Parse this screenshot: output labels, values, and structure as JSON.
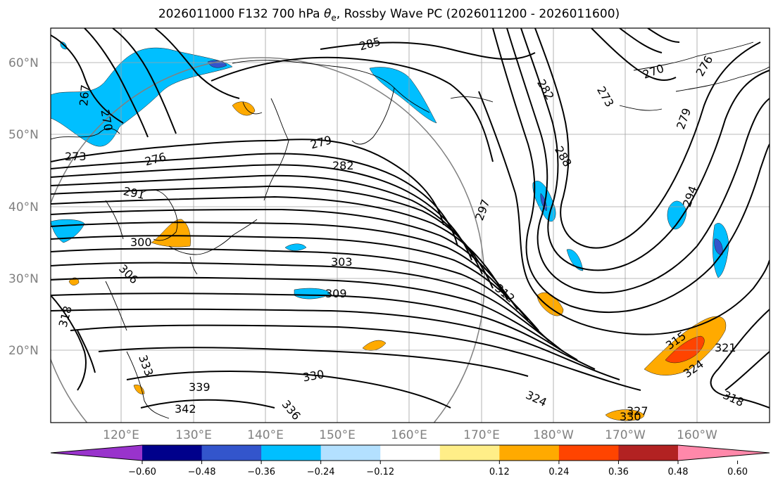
{
  "title": {
    "prefix": "2026011000 F132 700 hPa ",
    "theta": "θ",
    "sub": "e",
    "suffix": ", Rossby Wave PC (2026011200 - 2026011600)"
  },
  "map": {
    "lat_labels": [
      "60°N",
      "50°N",
      "40°N",
      "30°N",
      "20°N"
    ],
    "lon_labels": [
      "120°E",
      "130°E",
      "140°E",
      "150°E",
      "160°E",
      "170°E",
      "180°W",
      "170°W",
      "160°W"
    ],
    "contour_labels": [
      "285",
      "267",
      "270",
      "273",
      "276",
      "279",
      "282",
      "291",
      "300",
      "306",
      "318",
      "303",
      "309",
      "297",
      "312",
      "288",
      "282",
      "273",
      "270",
      "276",
      "279",
      "294",
      "321",
      "315",
      "324",
      "318",
      "330",
      "333",
      "339",
      "342",
      "336",
      "324",
      "330",
      "327"
    ]
  },
  "colorbar": {
    "ticks": [
      "−0.60",
      "−0.48",
      "−0.36",
      "−0.24",
      "−0.12",
      "0.12",
      "0.24",
      "0.36",
      "0.48",
      "0.60"
    ],
    "colors": [
      "#9933cc",
      "#00008b",
      "#3355cc",
      "#00bfff",
      "#b3e0ff",
      "#ffffff",
      "#ffee88",
      "#ffaa00",
      "#ff4400",
      "#b22222",
      "#ff88aa"
    ]
  }
}
